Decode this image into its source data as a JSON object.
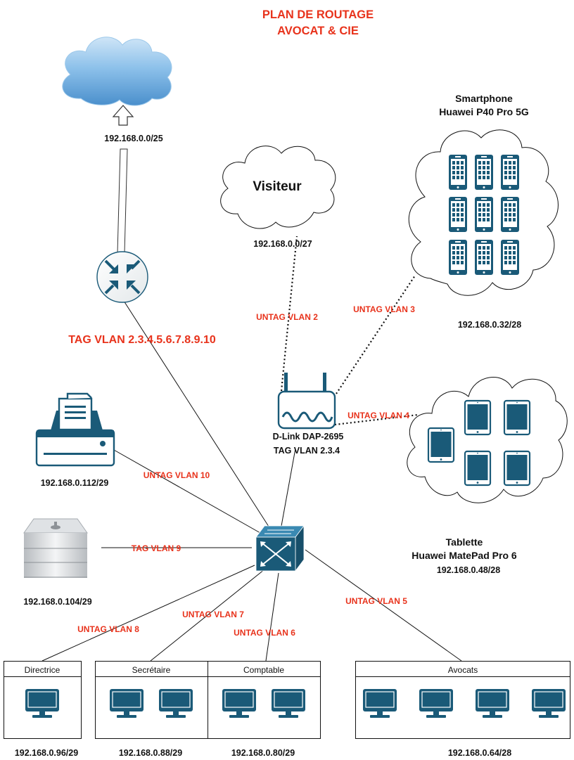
{
  "title": {
    "line1": "PLAN DE ROUTAGE",
    "line2": "AVOCAT & CIE"
  },
  "internet": {
    "subnet": "192.168.0.0/25"
  },
  "router": {
    "tag_label": "TAG VLAN 2.3.4.5.6.7.8.9.10"
  },
  "visiteur": {
    "label": "Visiteur",
    "subnet": "192.168.0.0/27",
    "vlan": "UNTAG VLAN 2"
  },
  "smartphone": {
    "line1": "Smartphone",
    "line2": "Huawei P40 Pro 5G",
    "subnet": "192.168.0.32/28",
    "vlan": "UNTAG VLAN 3"
  },
  "access_point": {
    "model": "D-Link DAP-2695",
    "tag": "TAG VLAN 2.3.4"
  },
  "tablette": {
    "line1": "Tablette",
    "line2": "Huawei MatePad Pro 6",
    "subnet": "192.168.0.48/28",
    "vlan": "UNTAG VLAN 4"
  },
  "printer": {
    "subnet": "192.168.0.112/29",
    "vlan": "UNTAG VLAN 10"
  },
  "server": {
    "subnet": "192.168.0.104/29",
    "vlan": "TAG VLAN 9"
  },
  "groups": {
    "directrice": {
      "label": "Directrice",
      "subnet": "192.168.0.96/29",
      "vlan": "UNTAG VLAN 8"
    },
    "secretaire": {
      "label": "Secrétaire",
      "subnet": "192.168.0.88/29",
      "vlan": "UNTAG VLAN 7"
    },
    "comptable": {
      "label": "Comptable",
      "subnet": "192.168.0.80/29",
      "vlan": "UNTAG VLAN 6"
    },
    "avocats": {
      "label": "Avocats",
      "subnet": "192.168.0.64/28",
      "vlan": "UNTAG VLAN 5"
    }
  },
  "colors": {
    "accent_red": "#e8331c",
    "device_blue": "#1a5a78",
    "cloud_blue": "#5a9fd4"
  },
  "icons": [
    "internet-cloud-icon",
    "router-icon",
    "switch-icon",
    "access-point-icon",
    "printer-icon",
    "server-icon",
    "monitor-icon",
    "smartphone-icon",
    "tablet-icon"
  ]
}
